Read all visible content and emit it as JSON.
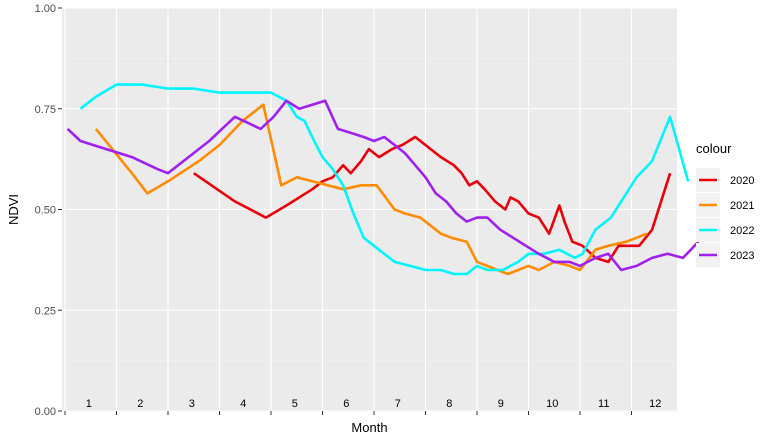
{
  "chart_data": {
    "type": "line",
    "xlabel": "Month",
    "ylabel": "NDVI",
    "ylim": [
      0,
      1
    ],
    "y_ticks": [
      "0.00",
      "0.25",
      "0.50",
      "0.75",
      "1.00"
    ],
    "x_month_labels": [
      "1",
      "2",
      "3",
      "4",
      "5",
      "6",
      "7",
      "8",
      "9",
      "10",
      "11",
      "12"
    ],
    "grid": true,
    "legend_title": "colour",
    "legend_position": "right",
    "series": [
      {
        "name": "2020",
        "color": "#e8000b",
        "x": [
          2.5,
          3.3,
          3.9,
          4.3,
          4.8,
          5.0,
          5.2,
          5.4,
          5.55,
          5.75,
          5.9,
          6.1,
          6.35,
          6.55,
          6.8,
          7.0,
          7.1,
          7.3,
          7.55,
          7.7,
          7.85,
          8.0,
          8.15,
          8.35,
          8.55,
          8.65,
          8.8,
          9.0,
          9.2,
          9.4,
          9.6,
          9.7,
          9.85,
          10.05,
          10.3,
          10.55,
          10.75,
          10.95,
          11.15,
          11.4,
          11.75
        ],
        "y": [
          0.59,
          0.52,
          0.48,
          0.51,
          0.55,
          0.57,
          0.58,
          0.61,
          0.59,
          0.62,
          0.65,
          0.63,
          0.65,
          0.66,
          0.68,
          0.66,
          0.65,
          0.63,
          0.61,
          0.59,
          0.56,
          0.57,
          0.55,
          0.52,
          0.5,
          0.53,
          0.52,
          0.49,
          0.48,
          0.44,
          0.51,
          0.47,
          0.42,
          0.41,
          0.38,
          0.37,
          0.41,
          0.41,
          0.41,
          0.45,
          0.59
        ]
      },
      {
        "name": "2021",
        "color": "#ff8c00",
        "x": [
          0.6,
          1.3,
          1.6,
          2.0,
          2.6,
          3.0,
          3.45,
          3.85,
          4.2,
          4.5,
          4.8,
          5.1,
          5.4,
          5.75,
          6.05,
          6.4,
          6.6,
          6.9,
          7.1,
          7.3,
          7.5,
          7.8,
          8.0,
          8.2,
          8.4,
          8.6,
          8.8,
          9.0,
          9.2,
          9.5,
          9.8,
          10.0,
          10.3,
          10.55,
          10.9,
          11.3
        ],
        "y": [
          0.7,
          0.59,
          0.54,
          0.57,
          0.62,
          0.66,
          0.72,
          0.76,
          0.56,
          0.58,
          0.57,
          0.56,
          0.55,
          0.56,
          0.56,
          0.5,
          0.49,
          0.48,
          0.46,
          0.44,
          0.43,
          0.42,
          0.37,
          0.36,
          0.35,
          0.34,
          0.35,
          0.36,
          0.35,
          0.37,
          0.36,
          0.35,
          0.4,
          0.41,
          0.42,
          0.44
        ]
      },
      {
        "name": "2022",
        "color": "#00f5ff",
        "x": [
          0.3,
          0.6,
          1.0,
          1.5,
          2.0,
          2.5,
          3.0,
          3.5,
          4.0,
          4.3,
          4.5,
          4.65,
          4.8,
          5.0,
          5.2,
          5.4,
          5.6,
          5.8,
          6.1,
          6.4,
          6.7,
          7.0,
          7.3,
          7.55,
          7.8,
          8.0,
          8.2,
          8.5,
          8.8,
          9.0,
          9.3,
          9.6,
          9.9,
          10.05,
          10.3,
          10.6,
          10.85,
          11.1,
          11.4,
          11.75,
          12.1
        ],
        "y": [
          0.75,
          0.78,
          0.81,
          0.81,
          0.8,
          0.8,
          0.79,
          0.79,
          0.79,
          0.77,
          0.73,
          0.72,
          0.68,
          0.63,
          0.6,
          0.56,
          0.49,
          0.43,
          0.4,
          0.37,
          0.36,
          0.35,
          0.35,
          0.34,
          0.34,
          0.36,
          0.35,
          0.35,
          0.37,
          0.39,
          0.39,
          0.4,
          0.38,
          0.39,
          0.45,
          0.48,
          0.53,
          0.58,
          0.62,
          0.73,
          0.57
        ]
      },
      {
        "name": "2023",
        "color": "#a020f0",
        "x": [
          0.05,
          0.3,
          0.8,
          1.3,
          1.8,
          2.0,
          2.3,
          2.8,
          3.3,
          3.8,
          4.05,
          4.3,
          4.55,
          4.8,
          5.05,
          5.3,
          5.55,
          5.8,
          6.0,
          6.2,
          6.4,
          6.6,
          6.8,
          7.0,
          7.2,
          7.4,
          7.6,
          7.8,
          8.0,
          8.2,
          8.45,
          8.7,
          8.95,
          9.2,
          9.5,
          9.8,
          10.0,
          10.3,
          10.55,
          10.8,
          11.1,
          11.4,
          11.7,
          12.0,
          12.3
        ],
        "y": [
          0.7,
          0.67,
          0.65,
          0.63,
          0.6,
          0.59,
          0.62,
          0.67,
          0.73,
          0.7,
          0.73,
          0.77,
          0.75,
          0.76,
          0.77,
          0.7,
          0.69,
          0.68,
          0.67,
          0.68,
          0.66,
          0.64,
          0.61,
          0.58,
          0.54,
          0.52,
          0.49,
          0.47,
          0.48,
          0.48,
          0.45,
          0.43,
          0.41,
          0.39,
          0.37,
          0.37,
          0.36,
          0.38,
          0.39,
          0.35,
          0.36,
          0.38,
          0.39,
          0.38,
          0.42
        ]
      }
    ]
  }
}
